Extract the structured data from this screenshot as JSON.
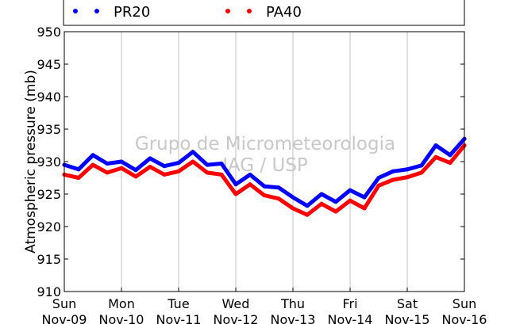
{
  "chart_data": {
    "type": "scatter",
    "ylabel": "Atmospheric pressure (mb)",
    "xlabel": "",
    "ylim": [
      910,
      950
    ],
    "yticks": [
      910,
      915,
      920,
      925,
      930,
      935,
      940,
      945,
      950
    ],
    "x_tick_labels": [
      {
        "day": "Sun",
        "date": "Nov-09"
      },
      {
        "day": "Mon",
        "date": "Nov-10"
      },
      {
        "day": "Tue",
        "date": "Nov-11"
      },
      {
        "day": "Wed",
        "date": "Nov-12"
      },
      {
        "day": "Thu",
        "date": "Nov-13"
      },
      {
        "day": "Fri",
        "date": "Nov-14"
      },
      {
        "day": "Sat",
        "date": "Nov-15"
      },
      {
        "day": "Sun",
        "date": "Nov-16"
      }
    ],
    "grid": "x-only",
    "legend": "top",
    "watermark": [
      "Grupo de Micrometeorologia",
      "IAG / USP"
    ],
    "series": [
      {
        "name": "PR20",
        "color": "#0000ff",
        "x": [
          "2014-11-09 00:00",
          "2014-11-09 06:00",
          "2014-11-09 12:00",
          "2014-11-09 18:00",
          "2014-11-10 00:00",
          "2014-11-10 06:00",
          "2014-11-10 12:00",
          "2014-11-10 18:00",
          "2014-11-11 00:00",
          "2014-11-11 06:00",
          "2014-11-11 12:00",
          "2014-11-11 18:00",
          "2014-11-12 00:00",
          "2014-11-12 06:00",
          "2014-11-12 12:00",
          "2014-11-12 18:00",
          "2014-11-13 00:00",
          "2014-11-13 06:00",
          "2014-11-13 12:00",
          "2014-11-13 18:00",
          "2014-11-14 00:00",
          "2014-11-14 06:00",
          "2014-11-14 12:00",
          "2014-11-14 18:00",
          "2014-11-15 00:00",
          "2014-11-15 06:00",
          "2014-11-15 12:00",
          "2014-11-15 18:00",
          "2014-11-16 00:00"
        ],
        "y": [
          929.5,
          928.8,
          931.0,
          929.7,
          930.0,
          928.7,
          930.5,
          929.3,
          929.8,
          931.5,
          929.5,
          929.7,
          926.5,
          928.0,
          926.2,
          926.0,
          924.5,
          923.2,
          925.0,
          923.8,
          925.6,
          924.5,
          927.5,
          928.5,
          928.8,
          929.4,
          932.5,
          931.0,
          933.5
        ]
      },
      {
        "name": "PA40",
        "color": "#ff0000",
        "x": [
          "2014-11-09 00:00",
          "2014-11-09 06:00",
          "2014-11-09 12:00",
          "2014-11-09 18:00",
          "2014-11-10 00:00",
          "2014-11-10 06:00",
          "2014-11-10 12:00",
          "2014-11-10 18:00",
          "2014-11-11 00:00",
          "2014-11-11 06:00",
          "2014-11-11 12:00",
          "2014-11-11 18:00",
          "2014-11-12 00:00",
          "2014-11-12 06:00",
          "2014-11-12 12:00",
          "2014-11-12 18:00",
          "2014-11-13 00:00",
          "2014-11-13 06:00",
          "2014-11-13 12:00",
          "2014-11-13 18:00",
          "2014-11-14 00:00",
          "2014-11-14 06:00",
          "2014-11-14 12:00",
          "2014-11-14 18:00",
          "2014-11-15 00:00",
          "2014-11-15 06:00",
          "2014-11-15 12:00",
          "2014-11-15 18:00",
          "2014-11-16 00:00"
        ],
        "y": [
          928.0,
          927.5,
          929.5,
          928.3,
          929.0,
          927.7,
          929.2,
          928.0,
          928.5,
          930.0,
          928.3,
          928.0,
          925.0,
          926.5,
          924.8,
          924.3,
          922.8,
          921.8,
          923.5,
          922.3,
          924.0,
          922.8,
          926.3,
          927.2,
          927.6,
          928.3,
          930.7,
          929.8,
          932.5
        ]
      }
    ]
  }
}
